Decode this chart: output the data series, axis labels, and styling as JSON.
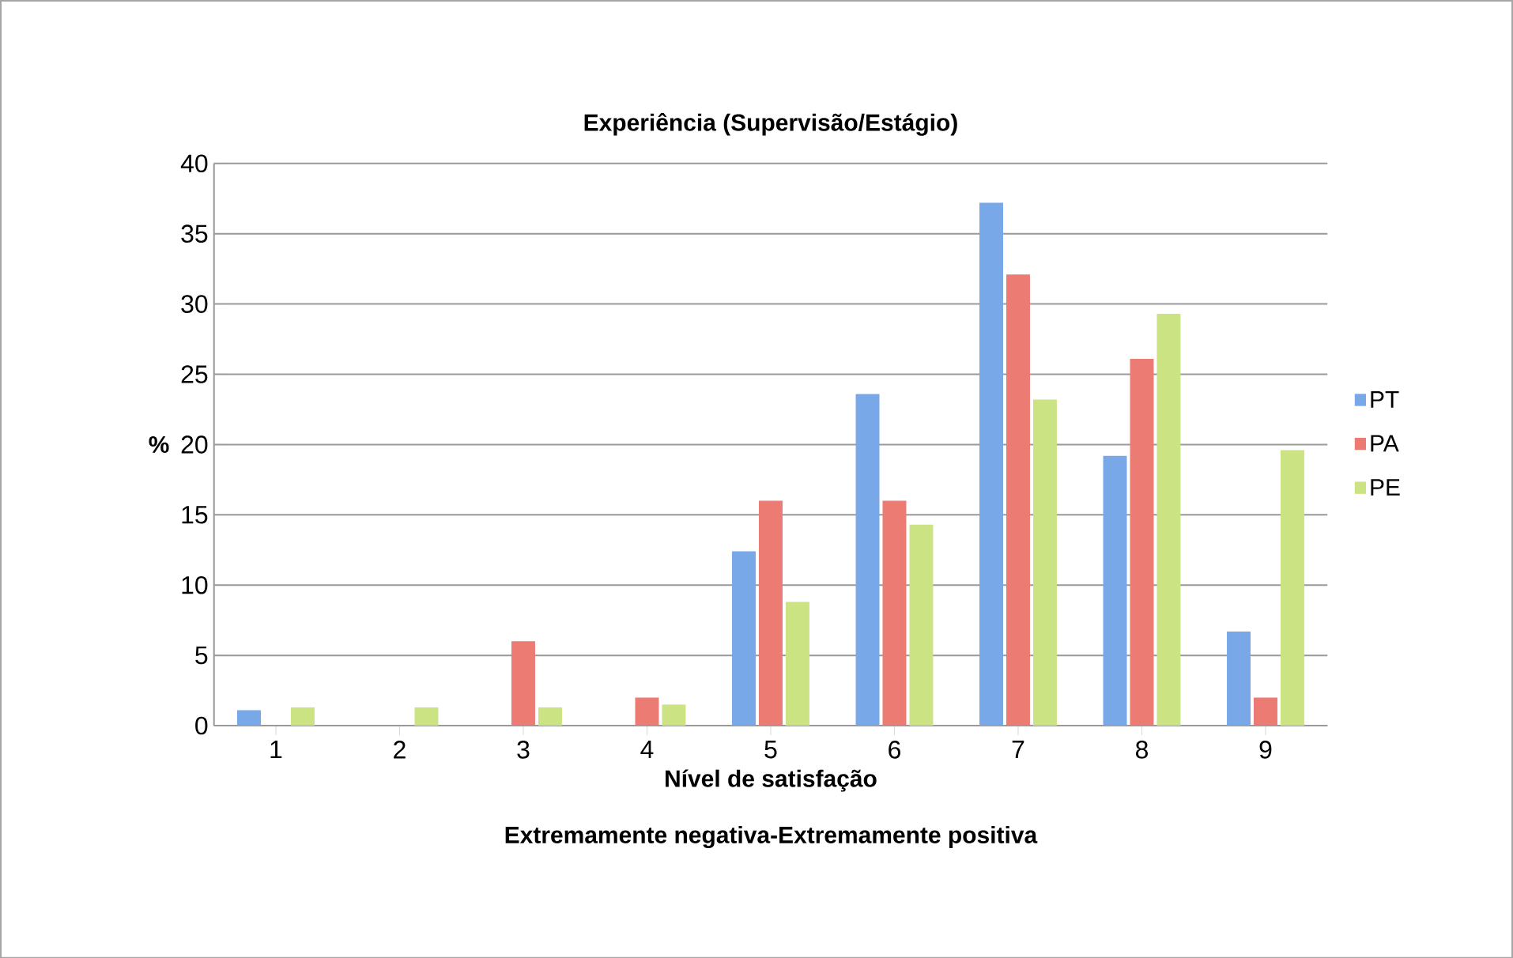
{
  "chart_data": {
    "type": "bar",
    "title": "Experiência (Supervisão/Estágio)",
    "xlabel": "Nível de satisfação",
    "annotations": [
      "Extremamente negativa-Extremamente positiva"
    ],
    "ylabel": "%",
    "categories": [
      "1",
      "2",
      "3",
      "4",
      "5",
      "6",
      "7",
      "8",
      "9"
    ],
    "series": [
      {
        "name": "PT",
        "color": "#78a8e8",
        "values": [
          1.1,
          0,
          0,
          0,
          12.4,
          23.6,
          37.2,
          19.2,
          6.7
        ]
      },
      {
        "name": "PA",
        "color": "#ec7b73",
        "values": [
          0,
          0,
          6.0,
          2.0,
          16.0,
          16.0,
          32.1,
          26.1,
          2.0
        ]
      },
      {
        "name": "PE",
        "color": "#cbe383",
        "values": [
          1.3,
          1.3,
          1.3,
          1.5,
          8.8,
          14.3,
          23.2,
          29.3,
          19.6
        ]
      }
    ],
    "ylim": [
      0,
      40
    ],
    "yticks": [
      0,
      5,
      10,
      15,
      20,
      25,
      30,
      35,
      40
    ],
    "grid": "y",
    "legend": "right"
  }
}
